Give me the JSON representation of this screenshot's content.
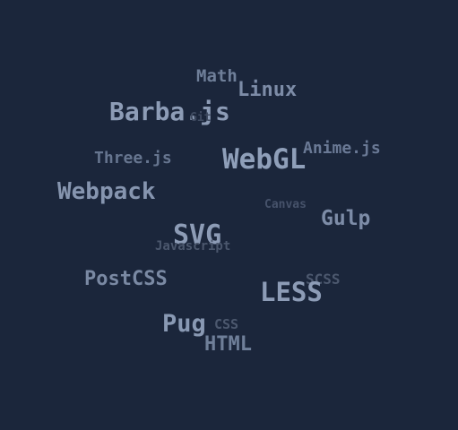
{
  "tag_cloud": {
    "tags": [
      {
        "id": "math",
        "label": "Math"
      },
      {
        "id": "linux",
        "label": "Linux"
      },
      {
        "id": "barba",
        "label": "Barba.js"
      },
      {
        "id": "git",
        "label": "Git"
      },
      {
        "id": "anime",
        "label": "Anime.js"
      },
      {
        "id": "three",
        "label": "Three.js"
      },
      {
        "id": "webgl",
        "label": "WebGL"
      },
      {
        "id": "webpack",
        "label": "Webpack"
      },
      {
        "id": "canvas",
        "label": "Canvas"
      },
      {
        "id": "gulp",
        "label": "Gulp"
      },
      {
        "id": "svg",
        "label": "SVG"
      },
      {
        "id": "javascript",
        "label": "Javascript"
      },
      {
        "id": "postcss",
        "label": "PostCSS"
      },
      {
        "id": "scss",
        "label": "SCSS"
      },
      {
        "id": "less",
        "label": "LESS"
      },
      {
        "id": "pug",
        "label": "Pug"
      },
      {
        "id": "css",
        "label": "CSS"
      },
      {
        "id": "html",
        "label": "HTML"
      }
    ]
  }
}
